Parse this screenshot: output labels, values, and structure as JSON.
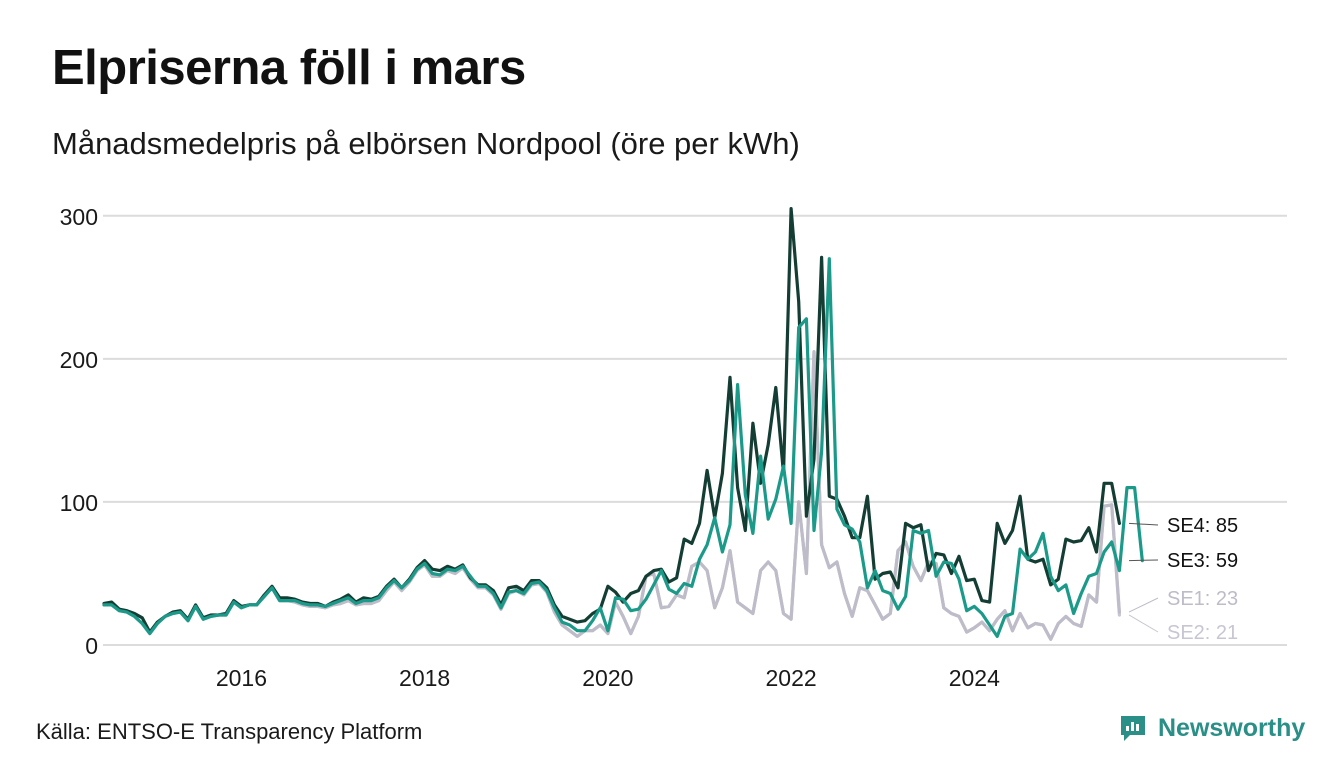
{
  "title": "Elpriserna föll i mars",
  "subtitle": "Månadsmedelpris på elbörsen Nordpool (öre per kWh)",
  "source": "Källa: ENTSO-E Transparency Platform",
  "brand": "Newsworthy",
  "colors": {
    "SE4": "#143d33",
    "SE3": "#1b9a8a",
    "SE1": "#bdbcc8",
    "SE2": "#c7c6d2",
    "grid": "#dcdcdc",
    "brand": "#2a8f86"
  },
  "chart_data": {
    "type": "line",
    "title": "Elpriserna föll i mars",
    "ylabel": "öre per kWh",
    "ylim": [
      0,
      300
    ],
    "yticks": [
      "0",
      "100",
      "200",
      "300"
    ],
    "xticks": [
      "2016",
      "2018",
      "2020",
      "2022",
      "2024"
    ],
    "x_start": "2015-01",
    "x_end": "2026-03",
    "series": [
      {
        "name": "SE4",
        "end_label": "SE4: 85",
        "values": [
          29,
          30,
          25,
          24,
          22,
          19,
          9,
          16,
          20,
          23,
          24,
          18,
          28,
          19,
          21,
          21,
          22,
          31,
          27,
          28,
          28,
          35,
          41,
          33,
          33,
          32,
          30,
          29,
          29,
          27,
          30,
          32,
          35,
          30,
          33,
          32,
          34,
          41,
          46,
          40,
          46,
          54,
          59,
          53,
          52,
          55,
          53,
          56,
          47,
          42,
          42,
          38,
          28,
          40,
          41,
          38,
          45,
          45,
          40,
          28,
          20,
          18,
          16,
          17,
          22,
          25,
          41,
          37,
          30,
          36,
          38,
          48,
          52,
          53,
          44,
          47,
          74,
          71,
          85,
          122,
          89,
          120,
          187,
          110,
          80,
          155,
          113,
          140,
          180,
          120,
          305,
          240,
          90,
          130,
          271,
          104,
          102,
          90,
          75,
          75,
          104,
          46,
          50,
          51,
          40,
          85,
          82,
          84,
          52,
          64,
          63,
          50,
          62,
          45,
          46,
          31,
          30,
          85,
          71,
          80,
          104,
          60,
          58,
          60,
          42,
          46,
          74,
          72,
          73,
          82,
          65,
          113,
          113,
          85
        ]
      },
      {
        "name": "SE3",
        "end_label": "SE3: 59",
        "values": [
          28,
          28,
          24,
          23,
          20,
          15,
          8,
          15,
          20,
          22,
          23,
          17,
          27,
          18,
          20,
          21,
          21,
          30,
          26,
          28,
          28,
          34,
          40,
          31,
          31,
          31,
          29,
          28,
          28,
          27,
          29,
          31,
          33,
          29,
          31,
          31,
          33,
          40,
          45,
          40,
          45,
          53,
          57,
          50,
          49,
          53,
          52,
          55,
          48,
          41,
          41,
          36,
          26,
          37,
          38,
          36,
          43,
          44,
          38,
          26,
          16,
          14,
          10,
          10,
          17,
          26,
          10,
          33,
          32,
          24,
          25,
          32,
          42,
          52,
          39,
          36,
          43,
          41,
          60,
          70,
          89,
          65,
          84,
          182,
          105,
          78,
          132,
          88,
          102,
          125,
          85,
          222,
          228,
          80,
          135,
          270,
          95,
          84,
          81,
          72,
          40,
          52,
          38,
          36,
          25,
          34,
          80,
          78,
          80,
          48,
          58,
          57,
          46,
          24,
          27,
          22,
          14,
          6,
          20,
          22,
          67,
          60,
          65,
          78,
          48,
          38,
          42,
          22,
          36,
          48,
          50,
          65,
          72,
          52,
          110,
          110,
          59
        ]
      },
      {
        "name": "SE1",
        "end_label": "SE1: 23",
        "values": [
          28,
          28,
          24,
          23,
          20,
          15,
          8,
          15,
          20,
          22,
          23,
          17,
          27,
          18,
          20,
          21,
          21,
          30,
          26,
          28,
          28,
          34,
          40,
          31,
          31,
          30,
          28,
          27,
          27,
          26,
          28,
          29,
          31,
          28,
          29,
          29,
          31,
          38,
          44,
          38,
          44,
          52,
          56,
          48,
          48,
          52,
          50,
          54,
          46,
          40,
          40,
          35,
          25,
          36,
          38,
          35,
          42,
          43,
          37,
          23,
          14,
          10,
          6,
          10,
          10,
          14,
          8,
          30,
          20,
          8,
          20,
          48,
          50,
          26,
          27,
          35,
          33,
          55,
          58,
          52,
          26,
          40,
          66,
          30,
          26,
          22,
          52,
          58,
          52,
          22,
          18,
          100,
          50,
          205,
          70,
          54,
          58,
          36,
          20,
          40,
          38,
          28,
          18,
          22,
          66,
          72,
          55,
          45,
          58,
          57,
          26,
          22,
          20,
          9,
          12,
          16,
          10,
          18,
          24,
          10,
          22,
          12,
          15,
          14,
          4,
          15,
          20,
          15,
          13,
          35,
          30,
          97,
          98,
          23
        ]
      },
      {
        "name": "SE2",
        "end_label": "SE2: 21",
        "values": [
          28,
          28,
          24,
          23,
          20,
          15,
          8,
          15,
          20,
          22,
          23,
          17,
          27,
          18,
          20,
          21,
          21,
          30,
          26,
          28,
          28,
          34,
          40,
          31,
          31,
          30,
          28,
          27,
          27,
          26,
          28,
          29,
          31,
          28,
          29,
          29,
          31,
          38,
          44,
          38,
          44,
          52,
          56,
          48,
          48,
          52,
          50,
          54,
          46,
          40,
          40,
          35,
          25,
          36,
          38,
          35,
          42,
          43,
          37,
          23,
          14,
          10,
          6,
          10,
          10,
          14,
          8,
          30,
          20,
          8,
          20,
          48,
          50,
          26,
          27,
          35,
          33,
          55,
          58,
          52,
          26,
          40,
          66,
          30,
          26,
          22,
          52,
          58,
          52,
          22,
          18,
          100,
          50,
          205,
          70,
          54,
          58,
          36,
          20,
          40,
          38,
          28,
          18,
          22,
          66,
          72,
          55,
          45,
          58,
          57,
          26,
          22,
          20,
          9,
          12,
          16,
          10,
          18,
          24,
          10,
          22,
          12,
          15,
          14,
          4,
          15,
          20,
          15,
          13,
          35,
          30,
          97,
          98,
          21
        ]
      }
    ]
  }
}
